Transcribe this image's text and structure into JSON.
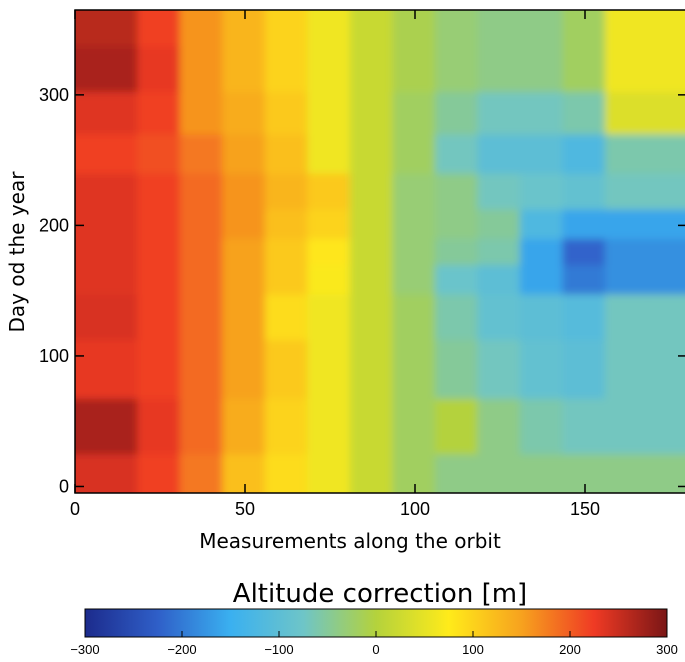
{
  "chart_data": {
    "type": "heatmap",
    "xlabel": "Measurements along the orbit",
    "ylabel": "Day od the year",
    "xlim": [
      0,
      180
    ],
    "ylim": [
      -5,
      365
    ],
    "xticks": [
      {
        "value": 0,
        "label": "0"
      },
      {
        "value": 50,
        "label": "50"
      },
      {
        "value": 100,
        "label": "100"
      },
      {
        "value": 150,
        "label": "150"
      }
    ],
    "yticks": [
      {
        "value": 0,
        "label": "0"
      },
      {
        "value": 100,
        "label": "100"
      },
      {
        "value": 200,
        "label": "200"
      },
      {
        "value": 300,
        "label": "300"
      }
    ],
    "x": [
      0,
      12,
      25,
      37,
      50,
      62,
      75,
      87,
      100,
      112,
      125,
      137,
      150,
      162,
      175
    ],
    "y": [
      5,
      45,
      90,
      135,
      160,
      180,
      200,
      225,
      255,
      285,
      320,
      355
    ],
    "z": [
      [
        240,
        240,
        220,
        180,
        120,
        90,
        60,
        20,
        -20,
        -40,
        -40,
        -40,
        -40,
        -40,
        -40
      ],
      [
        270,
        270,
        230,
        190,
        140,
        100,
        60,
        20,
        -20,
        0,
        -40,
        -60,
        -70,
        -70,
        -70
      ],
      [
        230,
        230,
        220,
        190,
        150,
        110,
        60,
        20,
        -20,
        -50,
        -70,
        -90,
        -100,
        -70,
        -70
      ],
      [
        240,
        240,
        220,
        190,
        150,
        90,
        60,
        20,
        -20,
        -60,
        -90,
        -100,
        -110,
        -70,
        -70
      ],
      [
        235,
        235,
        220,
        190,
        150,
        110,
        70,
        20,
        -30,
        -80,
        -100,
        -160,
        -200,
        -180,
        -180
      ],
      [
        235,
        235,
        220,
        190,
        150,
        110,
        80,
        20,
        -30,
        -50,
        -60,
        -160,
        -220,
        -180,
        -180
      ],
      [
        235,
        235,
        220,
        190,
        160,
        120,
        100,
        20,
        -30,
        -40,
        -50,
        -120,
        -160,
        -160,
        -160
      ],
      [
        235,
        235,
        220,
        190,
        160,
        130,
        110,
        20,
        -30,
        -40,
        -70,
        -80,
        -90,
        -70,
        -70
      ],
      [
        220,
        220,
        210,
        180,
        150,
        120,
        60,
        20,
        -20,
        -70,
        -100,
        -100,
        -120,
        -60,
        -60
      ],
      [
        235,
        235,
        220,
        160,
        140,
        110,
        60,
        20,
        -20,
        -50,
        -70,
        -70,
        -60,
        40,
        40
      ],
      [
        270,
        270,
        230,
        160,
        130,
        100,
        60,
        20,
        -10,
        -30,
        -40,
        -40,
        -20,
        60,
        60
      ],
      [
        260,
        260,
        220,
        160,
        130,
        100,
        60,
        20,
        -10,
        -30,
        -40,
        -40,
        -20,
        60,
        60
      ]
    ],
    "colorbar": {
      "title": "Altitude correction [m]",
      "range": [
        -300,
        300
      ],
      "ticks": [
        {
          "value": -300,
          "label": "−300"
        },
        {
          "value": -200,
          "label": "−200"
        },
        {
          "value": -100,
          "label": "−100"
        },
        {
          "value": 0,
          "label": "0"
        },
        {
          "value": 100,
          "label": "100"
        },
        {
          "value": 200,
          "label": "200"
        },
        {
          "value": 300,
          "label": "300"
        }
      ],
      "colormap": "jet",
      "colors": [
        "#1c2b8c",
        "#2f5fc8",
        "#3ab0f0",
        "#6ec5c8",
        "#b4d23c",
        "#ffeb1a",
        "#f7a21e",
        "#ef3a24",
        "#7a1616"
      ]
    }
  }
}
